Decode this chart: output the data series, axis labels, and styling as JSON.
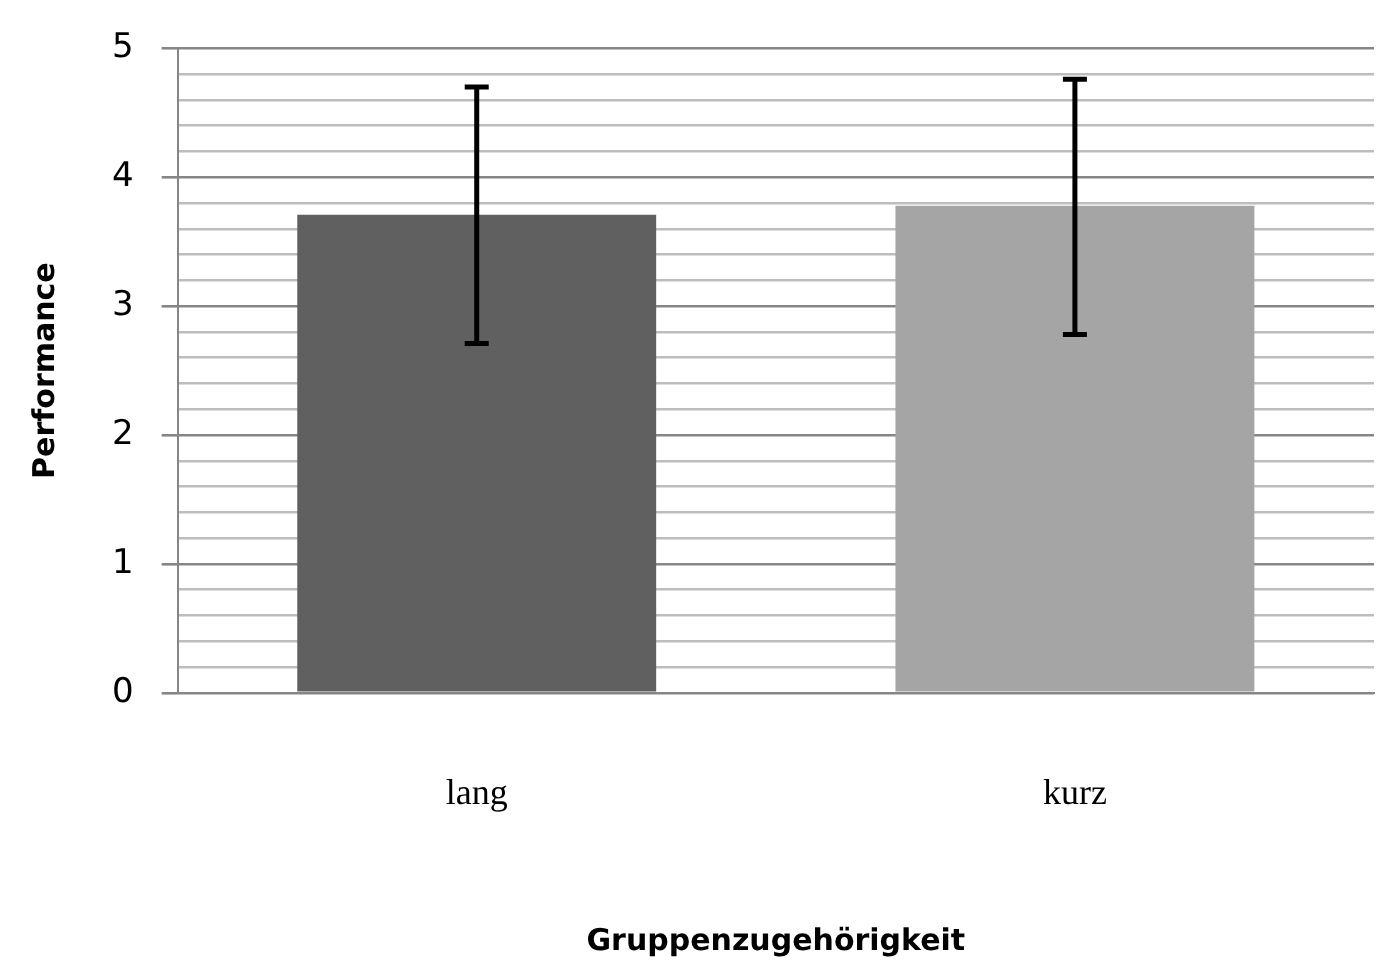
{
  "chart_data": {
    "type": "bar",
    "xlabel": "Gruppenzugehörigkeit",
    "ylabel": "Performance",
    "categories": [
      "lang",
      "kurz"
    ],
    "values": [
      3.71,
      3.78
    ],
    "colors": [
      "#606060",
      "#a5a5a5"
    ],
    "errors": [
      [
        2.71,
        4.7
      ],
      [
        2.78,
        4.76
      ]
    ],
    "ylim": [
      0,
      5
    ],
    "yticks": [
      0,
      {
        "value": 0.2,
        "label": null
      },
      {
        "value": 0.4,
        "label": null
      },
      {
        "value": 0.6,
        "label": null
      },
      {
        "value": 0.8,
        "label": null
      },
      1,
      {
        "value": 1.2,
        "label": null
      },
      {
        "value": 1.4,
        "label": null
      },
      {
        "value": 1.6,
        "label": null
      },
      {
        "value": 1.8,
        "label": null
      },
      2,
      {
        "value": 2.2,
        "label": null
      },
      {
        "value": 2.4,
        "label": null
      },
      {
        "value": 2.6,
        "label": null
      },
      {
        "value": 2.8,
        "label": null
      },
      3,
      {
        "value": 3.2,
        "label": null
      },
      {
        "value": 3.4,
        "label": null
      },
      {
        "value": 3.6,
        "label": null
      },
      {
        "value": 3.8,
        "label": null
      },
      4,
      {
        "value": 4.2,
        "label": null
      },
      {
        "value": 4.4,
        "label": null
      },
      {
        "value": 4.6,
        "label": null
      },
      {
        "value": 4.8,
        "label": null
      },
      5
    ],
    "grid": "y",
    "legend": false
  }
}
